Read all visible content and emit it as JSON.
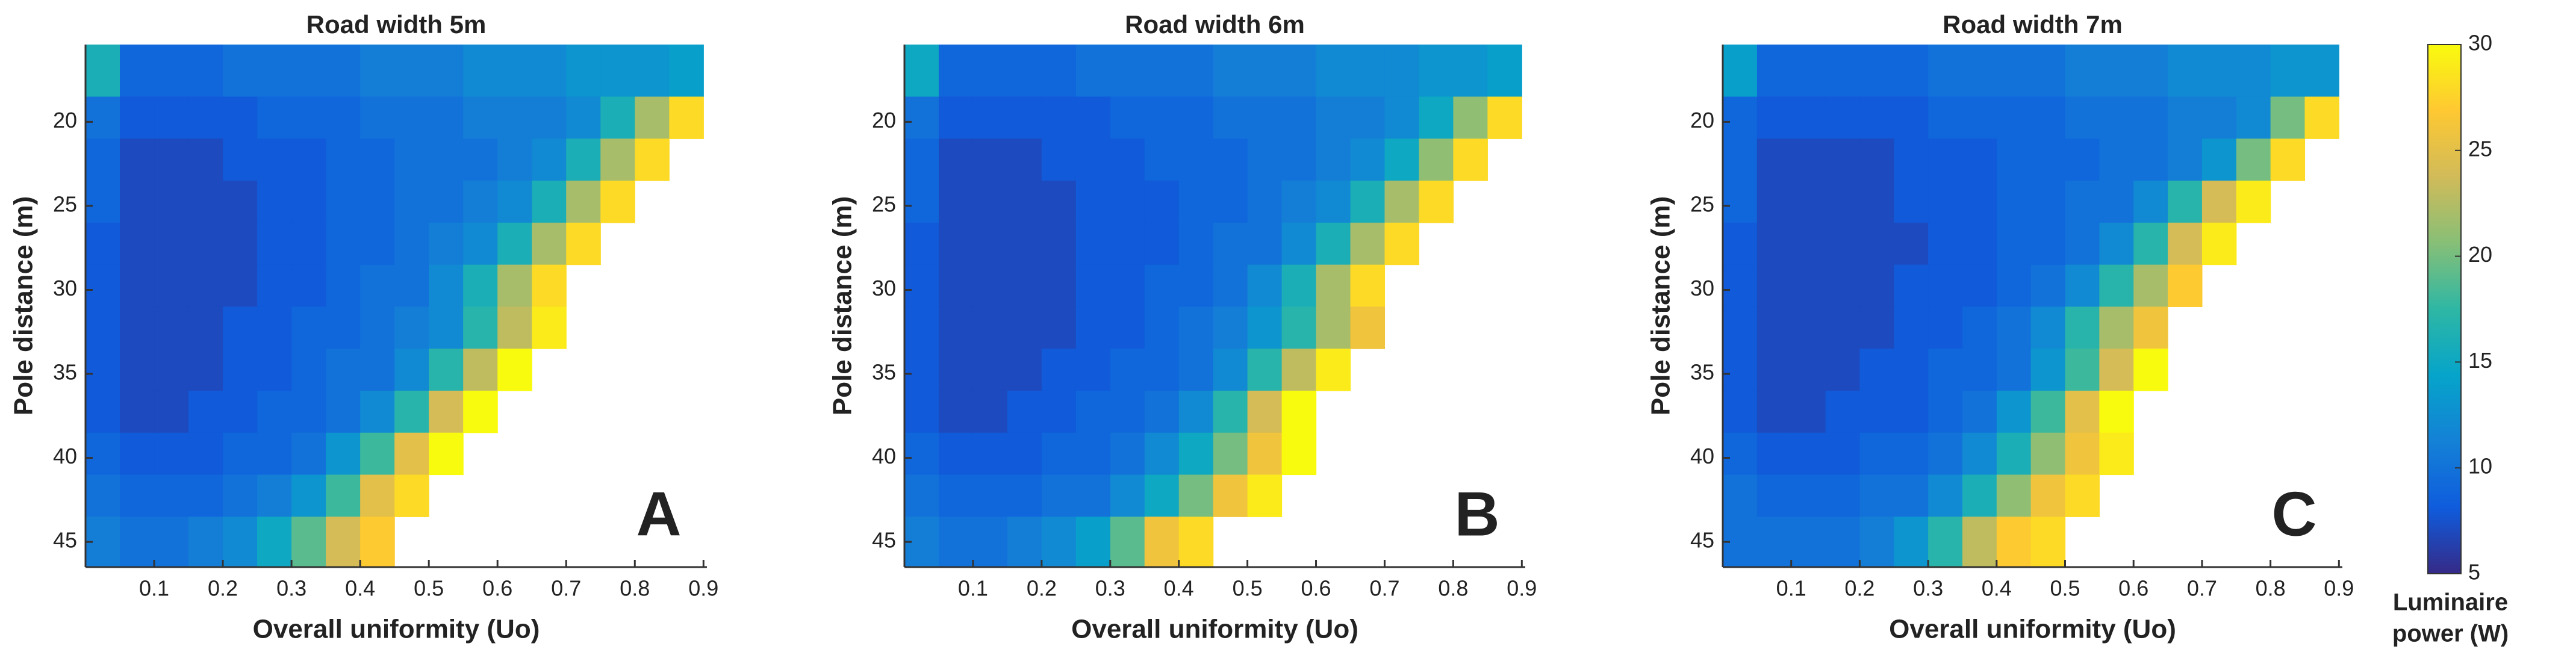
{
  "chart_data": [
    {
      "type": "heatmap",
      "title": "Road width 5m",
      "panel_label": "A",
      "xlabel": "Overall uniformity (Uo)",
      "ylabel": "Pole distance (m)",
      "xlim": [
        0,
        0.905
      ],
      "ylim": [
        15.4,
        46.5
      ],
      "xticks": [
        0.1,
        0.2,
        0.3,
        0.4,
        0.5,
        0.6,
        0.7,
        0.8,
        0.9
      ],
      "yticks": [
        20,
        25,
        30,
        35,
        40,
        45
      ],
      "x_edges": [
        0,
        0.05,
        0.1,
        0.15,
        0.2,
        0.25,
        0.3,
        0.35,
        0.4,
        0.45,
        0.5,
        0.55,
        0.6,
        0.65,
        0.7,
        0.75,
        0.8,
        0.85,
        0.9
      ],
      "y_edges": [
        15.4,
        18.5,
        21,
        23.5,
        26,
        28.5,
        31,
        33.5,
        36,
        38.5,
        41,
        43.5,
        46.5
      ],
      "z": [
        [
          16,
          9,
          9,
          9,
          10,
          10,
          10,
          10,
          11,
          11,
          11,
          12,
          12,
          12,
          13,
          13,
          13,
          14
        ],
        [
          10,
          8,
          8,
          8,
          8,
          9,
          9,
          9,
          10,
          10,
          10,
          11,
          11,
          11,
          12,
          16,
          22,
          28
        ],
        [
          9,
          7,
          7,
          7,
          8,
          8,
          8,
          9,
          9,
          10,
          10,
          10,
          11,
          12,
          16,
          22,
          28,
          null
        ],
        [
          9,
          7,
          7,
          7,
          7,
          8,
          8,
          9,
          9,
          10,
          10,
          11,
          12,
          16,
          22,
          28,
          null,
          null
        ],
        [
          8,
          7,
          7,
          7,
          7,
          8,
          8,
          9,
          9,
          10,
          11,
          12,
          16,
          22,
          28,
          null,
          null,
          null
        ],
        [
          8,
          7,
          7,
          7,
          7,
          8,
          8,
          9,
          10,
          10,
          12,
          16,
          22,
          28,
          null,
          null,
          null,
          null
        ],
        [
          8,
          7,
          7,
          7,
          8,
          8,
          9,
          9,
          10,
          11,
          12,
          17,
          23,
          29,
          null,
          null,
          null,
          null
        ],
        [
          8,
          7,
          7,
          7,
          8,
          8,
          9,
          10,
          10,
          12,
          17,
          23,
          30,
          null,
          null,
          null,
          null,
          null
        ],
        [
          8,
          7,
          7,
          8,
          8,
          9,
          9,
          10,
          12,
          17,
          24,
          30,
          null,
          null,
          null,
          null,
          null,
          null
        ],
        [
          9,
          8,
          8,
          8,
          9,
          9,
          10,
          13,
          18,
          25,
          30,
          null,
          null,
          null,
          null,
          null,
          null,
          null
        ],
        [
          10,
          9,
          9,
          9,
          10,
          11,
          13,
          18,
          25,
          28,
          null,
          null,
          null,
          null,
          null,
          null,
          null,
          null
        ],
        [
          11,
          10,
          10,
          11,
          12,
          15,
          19,
          24,
          27,
          null,
          null,
          null,
          null,
          null,
          null,
          null,
          null,
          null
        ]
      ]
    },
    {
      "type": "heatmap",
      "title": "Road width 6m",
      "panel_label": "B",
      "xlabel": "Overall uniformity (Uo)",
      "ylabel": "Pole distance (m)",
      "xlim": [
        0,
        0.905
      ],
      "ylim": [
        15.4,
        46.5
      ],
      "xticks": [
        0.1,
        0.2,
        0.3,
        0.4,
        0.5,
        0.6,
        0.7,
        0.8,
        0.9
      ],
      "yticks": [
        20,
        25,
        30,
        35,
        40,
        45
      ],
      "x_edges": [
        0,
        0.05,
        0.1,
        0.15,
        0.2,
        0.25,
        0.3,
        0.35,
        0.4,
        0.45,
        0.5,
        0.55,
        0.6,
        0.65,
        0.7,
        0.75,
        0.8,
        0.85,
        0.9
      ],
      "y_edges": [
        15.4,
        18.5,
        21,
        23.5,
        26,
        28.5,
        31,
        33.5,
        36,
        38.5,
        41,
        43.5,
        46.5
      ],
      "z": [
        [
          15,
          9,
          9,
          9,
          9,
          10,
          10,
          10,
          10,
          11,
          11,
          11,
          12,
          12,
          12,
          13,
          13,
          14
        ],
        [
          10,
          8,
          8,
          8,
          8,
          8,
          9,
          9,
          9,
          10,
          10,
          10,
          11,
          11,
          12,
          15,
          21,
          28
        ],
        [
          9,
          7,
          7,
          7,
          8,
          8,
          8,
          9,
          9,
          9,
          10,
          10,
          11,
          12,
          15,
          21,
          28,
          null
        ],
        [
          9,
          7,
          7,
          7,
          7,
          8,
          8,
          8,
          9,
          9,
          10,
          11,
          12,
          16,
          22,
          28,
          null,
          null
        ],
        [
          8,
          7,
          7,
          7,
          7,
          8,
          8,
          8,
          9,
          10,
          10,
          12,
          16,
          22,
          28,
          null,
          null,
          null
        ],
        [
          8,
          7,
          7,
          7,
          7,
          8,
          8,
          9,
          9,
          10,
          12,
          16,
          22,
          28,
          null,
          null,
          null,
          null
        ],
        [
          8,
          7,
          7,
          7,
          7,
          8,
          8,
          9,
          10,
          11,
          13,
          17,
          22,
          26,
          null,
          null,
          null,
          null
        ],
        [
          8,
          7,
          7,
          7,
          8,
          8,
          9,
          9,
          10,
          12,
          17,
          23,
          29,
          null,
          null,
          null,
          null,
          null
        ],
        [
          8,
          7,
          7,
          8,
          8,
          9,
          9,
          10,
          12,
          17,
          24,
          30,
          null,
          null,
          null,
          null,
          null,
          null
        ],
        [
          9,
          8,
          8,
          8,
          9,
          9,
          10,
          12,
          15,
          20,
          26,
          30,
          null,
          null,
          null,
          null,
          null,
          null
        ],
        [
          10,
          9,
          9,
          9,
          10,
          10,
          12,
          15,
          20,
          26,
          29,
          null,
          null,
          null,
          null,
          null,
          null,
          null
        ],
        [
          11,
          10,
          10,
          11,
          12,
          14,
          19,
          26,
          28,
          null,
          null,
          null,
          null,
          null,
          null,
          null,
          null,
          null
        ]
      ]
    },
    {
      "type": "heatmap",
      "title": "Road width 7m",
      "panel_label": "C",
      "xlabel": "Overall uniformity (Uo)",
      "ylabel": "Pole distance (m)",
      "xlim": [
        0,
        0.905
      ],
      "ylim": [
        15.4,
        46.5
      ],
      "xticks": [
        0.1,
        0.2,
        0.3,
        0.4,
        0.5,
        0.6,
        0.7,
        0.8,
        0.9
      ],
      "yticks": [
        20,
        25,
        30,
        35,
        40,
        45
      ],
      "x_edges": [
        0,
        0.05,
        0.1,
        0.15,
        0.2,
        0.25,
        0.3,
        0.35,
        0.4,
        0.45,
        0.5,
        0.55,
        0.6,
        0.65,
        0.7,
        0.75,
        0.8,
        0.85,
        0.9
      ],
      "y_edges": [
        15.4,
        18.5,
        21,
        23.5,
        26,
        28.5,
        31,
        33.5,
        36,
        38.5,
        41,
        43.5,
        46.5
      ],
      "z": [
        [
          14,
          9,
          9,
          9,
          9,
          9,
          10,
          10,
          10,
          10,
          11,
          11,
          11,
          12,
          12,
          12,
          13,
          13
        ],
        [
          9,
          8,
          8,
          8,
          8,
          8,
          9,
          9,
          9,
          9,
          10,
          10,
          10,
          11,
          11,
          12,
          20,
          28
        ],
        [
          9,
          7,
          7,
          7,
          7,
          8,
          8,
          8,
          9,
          9,
          9,
          10,
          10,
          11,
          13,
          20,
          28,
          null
        ],
        [
          9,
          7,
          7,
          7,
          7,
          8,
          8,
          8,
          9,
          9,
          10,
          10,
          12,
          17,
          24,
          29,
          null,
          null
        ],
        [
          8,
          7,
          7,
          7,
          7,
          7,
          8,
          8,
          9,
          9,
          10,
          12,
          17,
          24,
          29,
          null,
          null,
          null
        ],
        [
          8,
          7,
          7,
          7,
          7,
          8,
          8,
          8,
          9,
          10,
          12,
          17,
          22,
          27,
          null,
          null,
          null,
          null
        ],
        [
          8,
          7,
          7,
          7,
          7,
          8,
          8,
          9,
          10,
          12,
          17,
          22,
          26,
          null,
          null,
          null,
          null,
          null
        ],
        [
          8,
          7,
          7,
          7,
          8,
          8,
          9,
          9,
          10,
          13,
          18,
          24,
          30,
          null,
          null,
          null,
          null,
          null
        ],
        [
          8,
          7,
          7,
          8,
          8,
          8,
          9,
          10,
          13,
          18,
          25,
          30,
          null,
          null,
          null,
          null,
          null,
          null
        ],
        [
          9,
          8,
          8,
          8,
          9,
          9,
          10,
          12,
          16,
          21,
          26,
          29,
          null,
          null,
          null,
          null,
          null,
          null
        ],
        [
          10,
          9,
          9,
          9,
          10,
          10,
          12,
          16,
          21,
          26,
          28,
          null,
          null,
          null,
          null,
          null,
          null,
          null
        ],
        [
          10,
          10,
          10,
          10,
          11,
          13,
          17,
          23,
          27,
          28,
          null,
          null,
          null,
          null,
          null,
          null,
          null,
          null
        ]
      ]
    },
    {
      "type": "colorbar",
      "label": [
        "Luminaire",
        "power (W)"
      ],
      "clim": [
        5,
        30
      ],
      "ticks": [
        5,
        10,
        15,
        20,
        25,
        30
      ],
      "colormap": [
        "#352a87",
        "#0f5cdd",
        "#1481d6",
        "#06a4ca",
        "#2eb7a4",
        "#87bf77",
        "#d1bb59",
        "#fec832",
        "#f9fb0e"
      ]
    }
  ]
}
